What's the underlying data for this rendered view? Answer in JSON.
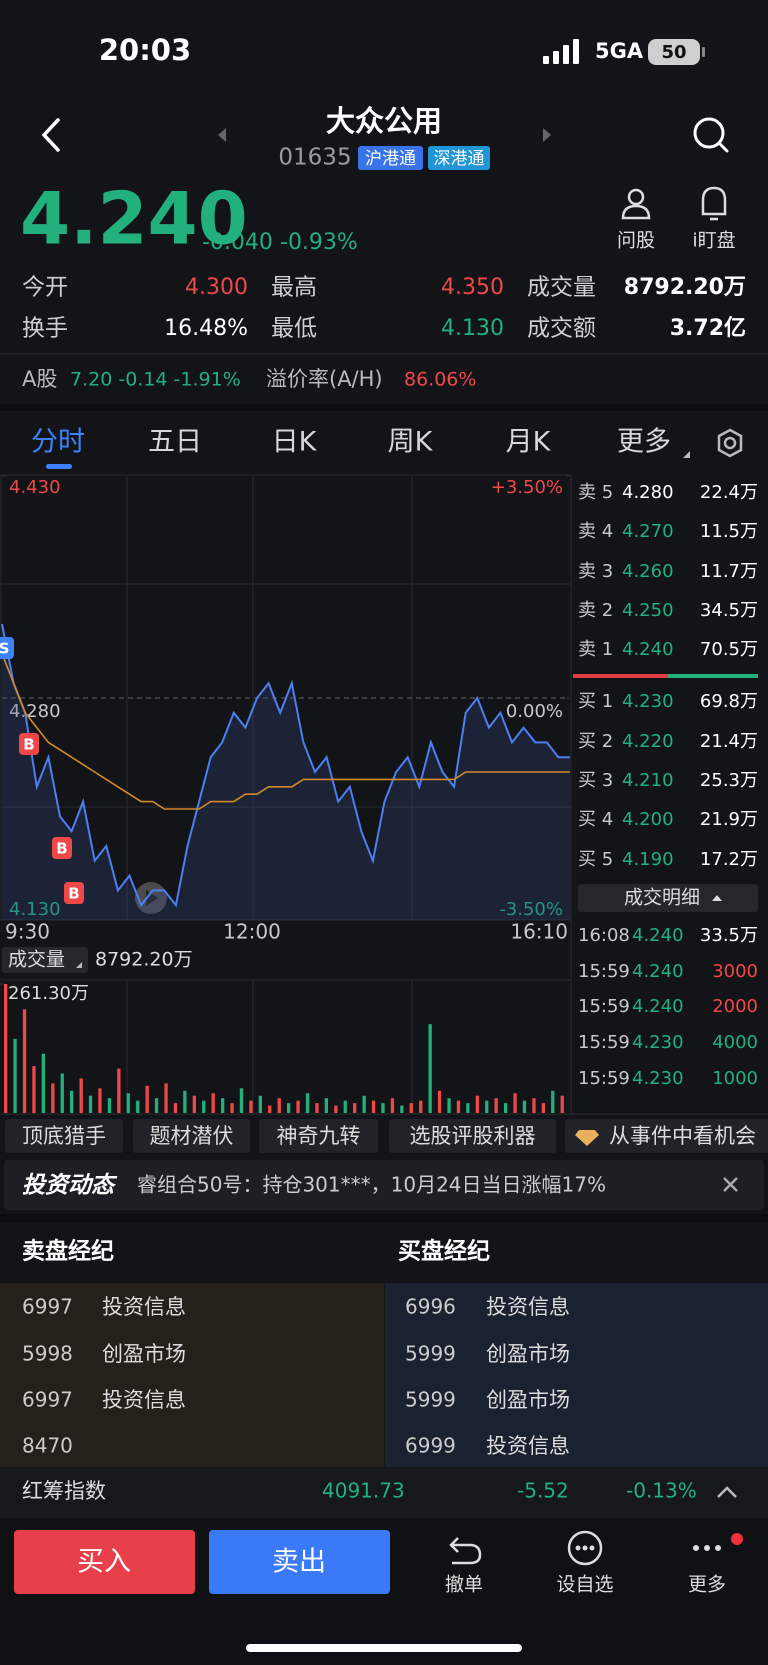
{
  "status_bar": {
    "time": "20:03",
    "network": "5GA",
    "battery": "50"
  },
  "header": {
    "name": "大众公用",
    "code": "01635",
    "badges": [
      "沪港通",
      "深港通"
    ]
  },
  "quote": {
    "price": "4.240",
    "change": "-0.040",
    "change_pct": "-0.93%",
    "actions": [
      "问股",
      "i盯盘"
    ]
  },
  "stats": [
    [
      {
        "label": "今开",
        "value": "4.300",
        "color": "#f04848"
      },
      {
        "label": "最高",
        "value": "4.350",
        "color": "#f04848"
      },
      {
        "label": "成交量",
        "value": "8792.20万",
        "color": "#ffffff"
      }
    ],
    [
      {
        "label": "换手",
        "value": "16.48%",
        "color": "#ffffff"
      },
      {
        "label": "最低",
        "value": "4.130",
        "color": "#22b07d"
      },
      {
        "label": "成交额",
        "value": "3.72亿",
        "color": "#ffffff"
      }
    ]
  ],
  "a_share": {
    "label": "A股",
    "quote": "7.20 -0.14 -1.91%",
    "premium_label": "溢价率(A/H)",
    "premium": "86.06%"
  },
  "tabs": [
    "分时",
    "五日",
    "日K",
    "周K",
    "月K",
    "更多"
  ],
  "price_chart": {
    "type": "line",
    "ylim": [
      4.13,
      4.43
    ],
    "yticks": [
      {
        "value": 4.43,
        "label": "4.430"
      },
      {
        "value": 4.28,
        "label": "4.280"
      },
      {
        "value": 4.13,
        "label": "4.130"
      }
    ],
    "y2lim": [
      -3.5,
      3.5
    ],
    "y2ticks": [
      {
        "value": 3.5,
        "label": "+3.50%"
      },
      {
        "value": 0,
        "label": "0.00%"
      },
      {
        "value": -3.5,
        "label": "-3.50%"
      }
    ],
    "x_labels": [
      "9:30",
      "12:00",
      "16:10"
    ],
    "series": [
      {
        "color": "#4d7ff0",
        "values": [
          4.33,
          4.29,
          4.27,
          4.22,
          4.24,
          4.2,
          4.19,
          4.21,
          4.17,
          4.18,
          4.15,
          4.16,
          4.14,
          4.15,
          4.15,
          4.14,
          4.18,
          4.21,
          4.24,
          4.25,
          4.27,
          4.26,
          4.28,
          4.29,
          4.27,
          4.29,
          4.25,
          4.23,
          4.24,
          4.21,
          4.22,
          4.19,
          4.17,
          4.21,
          4.23,
          4.24,
          4.22,
          4.25,
          4.23,
          4.22,
          4.27,
          4.28,
          4.26,
          4.27,
          4.25,
          4.26,
          4.25,
          4.25,
          4.24,
          4.24
        ]
      },
      {
        "color": "#d38a2a",
        "values": [
          4.31,
          4.29,
          4.27,
          4.26,
          4.25,
          4.245,
          4.24,
          4.235,
          4.23,
          4.225,
          4.22,
          4.215,
          4.21,
          4.21,
          4.205,
          4.205,
          4.205,
          4.205,
          4.21,
          4.21,
          4.21,
          4.215,
          4.215,
          4.22,
          4.22,
          4.22,
          4.225,
          4.225,
          4.225,
          4.225,
          4.225,
          4.225,
          4.225,
          4.225,
          4.225,
          4.225,
          4.225,
          4.225,
          4.225,
          4.225,
          4.23,
          4.23,
          4.23,
          4.23,
          4.23,
          4.23,
          4.23,
          4.23,
          4.23,
          4.23
        ]
      }
    ],
    "markers": [
      "S",
      "B",
      "B",
      "B"
    ]
  },
  "volume_chart": {
    "label": "成交量",
    "total": "8792.20万",
    "ylim": [
      0,
      261.3
    ],
    "yticks": [
      {
        "value": 261.3,
        "label": "261.30万"
      }
    ],
    "values": [
      261.3,
      150,
      210,
      95,
      120,
      60,
      80,
      45,
      70,
      35,
      50,
      30,
      90,
      40,
      25,
      55,
      30,
      60,
      20,
      45,
      35,
      25,
      40,
      30,
      20,
      50,
      25,
      35,
      15,
      30,
      20,
      25,
      40,
      20,
      30,
      15,
      25,
      20,
      35,
      25,
      20,
      30,
      15,
      20,
      25,
      180,
      45,
      30,
      25,
      20,
      35,
      25,
      30,
      20,
      40,
      25,
      30,
      20,
      45,
      35
    ],
    "colors": [
      "#f04848",
      "#22b07d",
      "#f04848",
      "#f04848",
      "#22b07d",
      "#f04848",
      "#22b07d",
      "#22b07d",
      "#f04848",
      "#22b07d",
      "#f04848",
      "#22b07d",
      "#f04848",
      "#22b07d",
      "#22b07d",
      "#f04848",
      "#22b07d",
      "#f04848",
      "#f04848",
      "#22b07d",
      "#f04848",
      "#22b07d",
      "#f04848",
      "#22b07d",
      "#f04848",
      "#22b07d",
      "#f04848",
      "#22b07d",
      "#f04848",
      "#f04848",
      "#22b07d",
      "#f04848",
      "#22b07d",
      "#f04848",
      "#22b07d",
      "#f04848",
      "#22b07d",
      "#f04848",
      "#22b07d",
      "#f04848",
      "#22b07d",
      "#f04848",
      "#22b07d",
      "#f04848",
      "#f04848",
      "#22b07d",
      "#f04848",
      "#22b07d",
      "#f04848",
      "#22b07d",
      "#f04848",
      "#22b07d",
      "#f04848",
      "#22b07d",
      "#f04848",
      "#22b07d",
      "#f04848",
      "#f04848",
      "#22b07d",
      "#f04848"
    ]
  },
  "order_book": {
    "asks": [
      {
        "label": "卖 5",
        "price": "4.280",
        "volume": "22.4万",
        "color": "#ffffff"
      },
      {
        "label": "卖 4",
        "price": "4.270",
        "volume": "11.5万",
        "color": "#22b07d"
      },
      {
        "label": "卖 3",
        "price": "4.260",
        "volume": "11.7万",
        "color": "#22b07d"
      },
      {
        "label": "卖 2",
        "price": "4.250",
        "volume": "34.5万",
        "color": "#22b07d"
      },
      {
        "label": "卖 1",
        "price": "4.240",
        "volume": "70.5万",
        "color": "#22b07d"
      }
    ],
    "bids": [
      {
        "label": "买 1",
        "price": "4.230",
        "volume": "69.8万",
        "color": "#22b07d"
      },
      {
        "label": "买 2",
        "price": "4.220",
        "volume": "21.4万",
        "color": "#22b07d"
      },
      {
        "label": "买 3",
        "price": "4.210",
        "volume": "25.3万",
        "color": "#22b07d"
      },
      {
        "label": "买 4",
        "price": "4.200",
        "volume": "21.9万",
        "color": "#22b07d"
      },
      {
        "label": "买 5",
        "price": "4.190",
        "volume": "17.2万",
        "color": "#22b07d"
      }
    ],
    "detail_button": "成交明细",
    "trades": [
      {
        "time": "16:08",
        "price": "4.240",
        "volume": "33.5万",
        "color": "#ffffff"
      },
      {
        "time": "15:59",
        "price": "4.240",
        "volume": "3000",
        "color": "#f04848"
      },
      {
        "time": "15:59",
        "price": "4.240",
        "volume": "2000",
        "color": "#f04848"
      },
      {
        "time": "15:59",
        "price": "4.230",
        "volume": "4000",
        "color": "#22b07d"
      },
      {
        "time": "15:59",
        "price": "4.230",
        "volume": "1000",
        "color": "#22b07d"
      }
    ]
  },
  "tags": [
    "顶底猎手",
    "题材潜伏",
    "神奇九转",
    "选股评股利器",
    "从事件中看机会"
  ],
  "news": {
    "title": "投资动态",
    "text": "睿组合50号：持仓301***，10月24日当日涨幅17%"
  },
  "brokers": {
    "sell_title": "卖盘经纪",
    "buy_title": "买盘经纪",
    "sell": [
      {
        "code": "6997",
        "name": "投资信息"
      },
      {
        "code": "5998",
        "name": "创盈市场"
      },
      {
        "code": "6997",
        "name": "投资信息"
      },
      {
        "code": "8470"
      }
    ],
    "buy": [
      {
        "code": "6996",
        "name": "投资信息"
      },
      {
        "code": "5999",
        "name": "创盈市场"
      },
      {
        "code": "5999",
        "name": "创盈市场"
      },
      {
        "code": "6999",
        "name": "投资信息"
      }
    ]
  },
  "index_bar": {
    "name": "红筹指数",
    "value": "4091.73",
    "change": "-5.52",
    "change_pct": "-0.13%"
  },
  "toolbar": {
    "buy": "买入",
    "sell": "卖出",
    "actions": [
      "撤单",
      "设自选",
      "更多"
    ]
  }
}
